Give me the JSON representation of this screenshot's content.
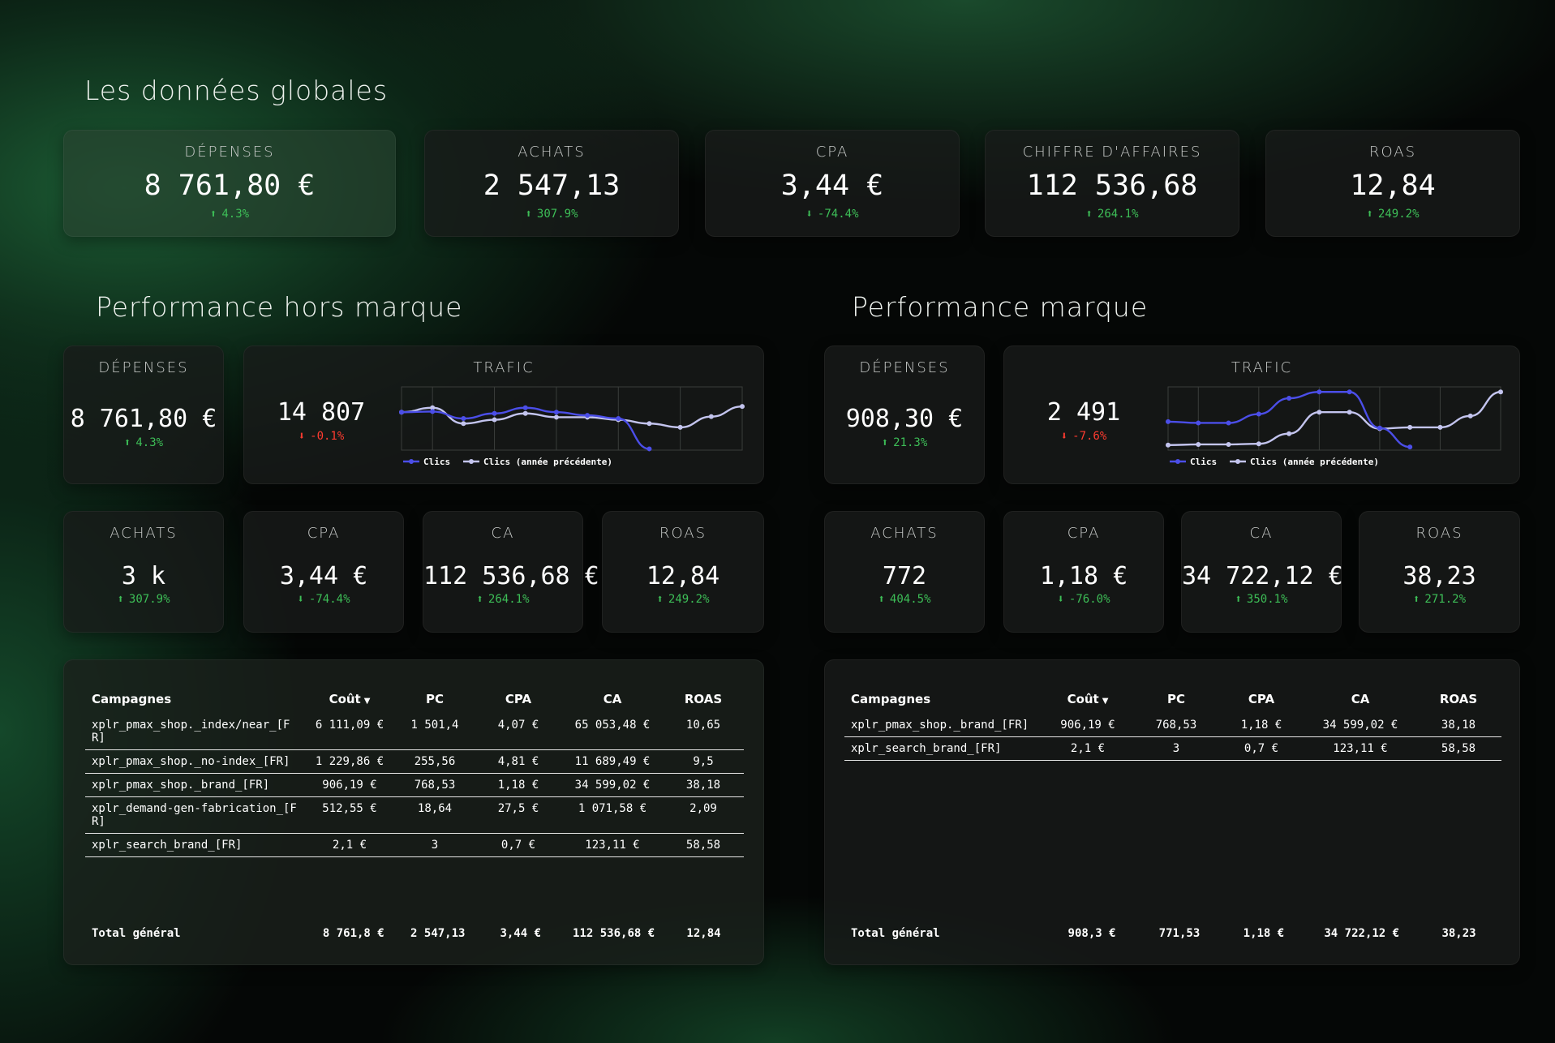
{
  "global": {
    "title": "Les données globales",
    "kpis": [
      {
        "label": "DÉPENSES",
        "value": "8 761,80 €",
        "change": "4.3%",
        "dir": "up"
      },
      {
        "label": "ACHATS",
        "value": "2 547,13",
        "change": "307.9%",
        "dir": "up"
      },
      {
        "label": "CPA",
        "value": "3,44 €",
        "change": "-74.4%",
        "dir": "down"
      },
      {
        "label": "CHIFFRE D'AFFAIRES",
        "value": "112 536,68",
        "change": "264.1%",
        "dir": "up"
      },
      {
        "label": "ROAS",
        "value": "12,84",
        "change": "249.2%",
        "dir": "up"
      }
    ]
  },
  "left": {
    "title": "Performance hors marque",
    "depenses": {
      "label": "DÉPENSES",
      "value": "8 761,80 €",
      "change": "4.3%",
      "dir": "up"
    },
    "trafic": {
      "label": "TRAFIC",
      "value": "14 807",
      "change": "-0.1%",
      "dir": "down",
      "legend": [
        "Clics",
        "Clics (année précédente)"
      ]
    },
    "kpis": [
      {
        "label": "ACHATS",
        "value": "3 k",
        "change": "307.9%",
        "dir": "up"
      },
      {
        "label": "CPA",
        "value": "3,44 €",
        "change": "-74.4%",
        "dir": "down"
      },
      {
        "label": "CA",
        "value": "112 536,68 €",
        "change": "264.1%",
        "dir": "up"
      },
      {
        "label": "ROAS",
        "value": "12,84",
        "change": "249.2%",
        "dir": "up"
      }
    ],
    "table": {
      "headers": [
        "Campagnes",
        "Coût",
        "PC",
        "CPA",
        "CA",
        "ROAS"
      ],
      "rows": [
        [
          "xplr_pmax_shop._index/near_[FR]",
          "6 111,09 €",
          "1 501,4",
          "4,07 €",
          "65 053,48 €",
          "10,65"
        ],
        [
          "xplr_pmax_shop._no-index_[FR]",
          "1 229,86 €",
          "255,56",
          "4,81 €",
          "11 689,49 €",
          "9,5"
        ],
        [
          "xplr_pmax_shop._brand_[FR]",
          "906,19 €",
          "768,53",
          "1,18 €",
          "34 599,02 €",
          "38,18"
        ],
        [
          "xplr_demand-gen-fabrication_[FR]",
          "512,55 €",
          "18,64",
          "27,5 €",
          "1 071,58 €",
          "2,09"
        ],
        [
          "xplr_search_brand_[FR]",
          "2,1 €",
          "3",
          "0,7 €",
          "123,11 €",
          "58,58"
        ]
      ],
      "total": [
        "Total général",
        "8 761,8 €",
        "2 547,13",
        "3,44 €",
        "112 536,68 €",
        "12,84"
      ]
    }
  },
  "right": {
    "title": "Performance marque",
    "depenses": {
      "label": "DÉPENSES",
      "value": "908,30 €",
      "change": "21.3%",
      "dir": "up"
    },
    "trafic": {
      "label": "TRAFIC",
      "value": "2 491",
      "change": "-7.6%",
      "dir": "down",
      "legend": [
        "Clics",
        "Clics (année précédente)"
      ]
    },
    "kpis": [
      {
        "label": "ACHATS",
        "value": "772",
        "change": "404.5%",
        "dir": "up"
      },
      {
        "label": "CPA",
        "value": "1,18 €",
        "change": "-76.0%",
        "dir": "down"
      },
      {
        "label": "CA",
        "value": "34 722,12 €",
        "change": "350.1%",
        "dir": "up"
      },
      {
        "label": "ROAS",
        "value": "38,23",
        "change": "271.2%",
        "dir": "up"
      }
    ],
    "table": {
      "headers": [
        "Campagnes",
        "Coût",
        "PC",
        "CPA",
        "CA",
        "ROAS"
      ],
      "rows": [
        [
          "xplr_pmax_shop._brand_[FR]",
          "906,19 €",
          "768,53",
          "1,18 €",
          "34 599,02 €",
          "38,18"
        ],
        [
          "xplr_search_brand_[FR]",
          "2,1 €",
          "3",
          "0,7 €",
          "123,11 €",
          "58,58"
        ]
      ],
      "total": [
        "Total général",
        "908,3 €",
        "771,53",
        "1,18 €",
        "34 722,12 €",
        "38,23"
      ]
    }
  },
  "colors": {
    "up": "#3dbe57",
    "down": "#ff3b30",
    "series_current": "#4b4ee8",
    "series_previous": "#c3c4ee"
  },
  "chart_data": [
    {
      "type": "line",
      "grid": true,
      "series": [
        {
          "name": "Clics",
          "values": [
            0.4,
            0.39,
            0.5,
            0.42,
            0.33,
            0.4,
            0.45,
            0.5,
            0.98,
            null,
            null,
            null
          ]
        },
        {
          "name": "Clics (année précédente)",
          "values": [
            0.4,
            0.33,
            0.58,
            0.52,
            0.42,
            0.48,
            0.48,
            0.52,
            0.58,
            0.64,
            0.47,
            0.31
          ]
        }
      ]
    },
    {
      "type": "line",
      "grid": true,
      "series": [
        {
          "name": "Clics",
          "values": [
            0.55,
            0.57,
            0.57,
            0.43,
            0.18,
            0.08,
            0.08,
            0.65,
            0.95,
            null,
            null,
            null
          ]
        },
        {
          "name": "Clics (année précédente)",
          "values": [
            0.92,
            0.91,
            0.91,
            0.9,
            0.74,
            0.4,
            0.4,
            0.66,
            0.64,
            0.64,
            0.46,
            0.08
          ]
        }
      ]
    }
  ]
}
